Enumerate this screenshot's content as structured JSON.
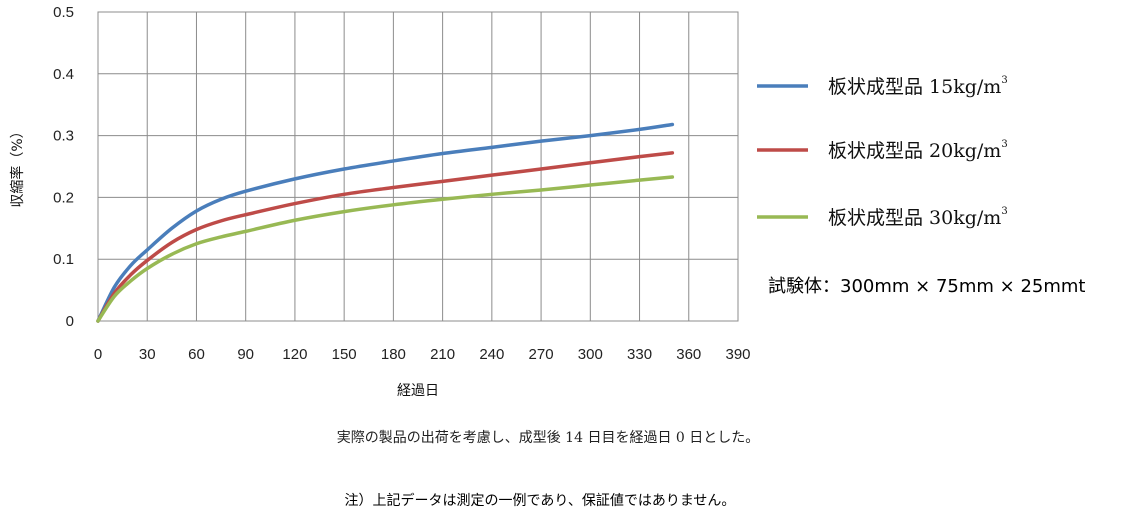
{
  "chart_data": {
    "type": "line",
    "title": "",
    "xlabel": "経過日",
    "ylabel": "収縮率（%）",
    "xlim": [
      0,
      390
    ],
    "ylim": [
      0,
      0.5
    ],
    "x_ticks": [
      "0",
      "30",
      "60",
      "90",
      "120",
      "150",
      "180",
      "210",
      "240",
      "270",
      "300",
      "330",
      "360",
      "390"
    ],
    "y_ticks": [
      "0",
      "0.1",
      "0.2",
      "0.3",
      "0.4",
      "0.5"
    ],
    "grid": true,
    "legend_position": "right",
    "x": [
      0,
      10,
      20,
      30,
      45,
      60,
      75,
      90,
      120,
      150,
      180,
      210,
      240,
      270,
      300,
      330,
      350
    ],
    "series": [
      {
        "name": "板状成型品 15kg/m",
        "unit_sup": "3",
        "color": "#4a7ebb",
        "values": [
          0,
          0.055,
          0.09,
          0.115,
          0.15,
          0.178,
          0.197,
          0.21,
          0.23,
          0.246,
          0.259,
          0.271,
          0.281,
          0.291,
          0.3,
          0.31,
          0.318
        ]
      },
      {
        "name": "板状成型品 20kg/m",
        "unit_sup": "3",
        "color": "#be4b48",
        "values": [
          0,
          0.045,
          0.075,
          0.098,
          0.127,
          0.148,
          0.162,
          0.172,
          0.19,
          0.205,
          0.216,
          0.226,
          0.236,
          0.246,
          0.256,
          0.266,
          0.272
        ]
      },
      {
        "name": "板状成型品 30kg/m",
        "unit_sup": "3",
        "color": "#98b954",
        "values": [
          0,
          0.04,
          0.065,
          0.085,
          0.108,
          0.125,
          0.136,
          0.145,
          0.163,
          0.177,
          0.188,
          0.197,
          0.205,
          0.212,
          0.22,
          0.228,
          0.233
        ]
      }
    ]
  },
  "spec_text": "試験体：300mm × 75mm × 25mmt",
  "note_line1": "実際の製品の出荷を考慮し、成型後 14 日目を経過日 0 日とした。",
  "note_line2": "注）上記データは測定の一例であり、保証値ではありません。"
}
